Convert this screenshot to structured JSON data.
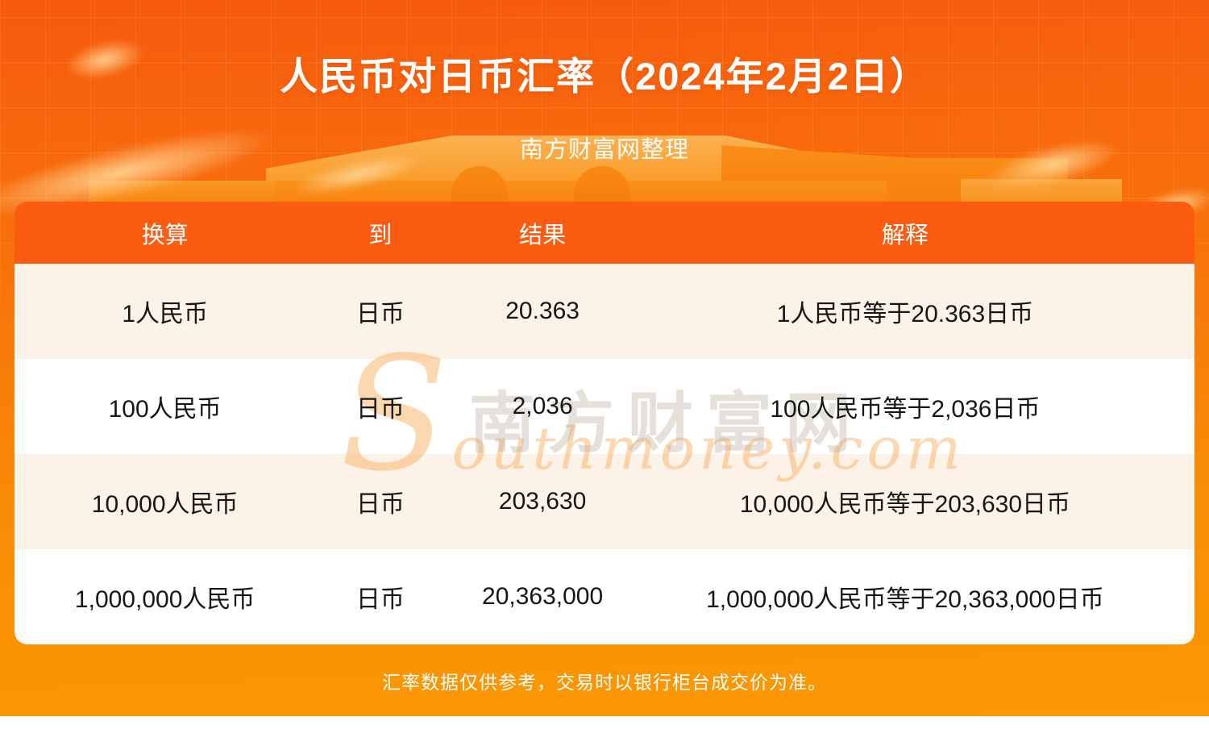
{
  "banner": {
    "title": "人民币对日币汇率（2024年2月2日）",
    "subtitle": "南方财富网整理"
  },
  "table": {
    "headers": [
      "换算",
      "到",
      "结果",
      "解释"
    ],
    "rows": [
      [
        "1人民币",
        "日币",
        "20.363",
        "1人民币等于20.363日币"
      ],
      [
        "100人民币",
        "日币",
        "2,036",
        "100人民币等于2,036日币"
      ],
      [
        "10,000人民币",
        "日币",
        "203,630",
        "10,000人民币等于203,630日币"
      ],
      [
        "1,000,000人民币",
        "日币",
        "20,363,000",
        "1,000,000人民币等于20,363,000日币"
      ]
    ]
  },
  "watermark": {
    "cn": "南方财富网",
    "en": "Southmoney.com"
  },
  "footer": {
    "disclaimer": "汇率数据仅供参考，交易时以银行柜台成交价为准。"
  },
  "colors": {
    "header_bg": "#FB5C12",
    "row_stripe": "#FCF2E8",
    "row_plain": "#FFFFFF",
    "banner_top": "#F75A0E",
    "banner_bottom": "#FB9803",
    "text_dark": "#161616",
    "text_light": "#FFFFFF"
  },
  "chart_data": {
    "type": "table",
    "title": "人民币对日币汇率（2024年2月2日）",
    "subtitle": "南方财富网整理",
    "columns": [
      "换算",
      "到",
      "结果",
      "解释"
    ],
    "rows": [
      {
        "convert": "1人民币",
        "to": "日币",
        "result": 20.363,
        "explanation": "1人民币等于20.363日币"
      },
      {
        "convert": "100人民币",
        "to": "日币",
        "result": 2036,
        "explanation": "100人民币等于2,036日币"
      },
      {
        "convert": "10,000人民币",
        "to": "日币",
        "result": 203630,
        "explanation": "10,000人民币等于203,630日币"
      },
      {
        "convert": "1,000,000人民币",
        "to": "日币",
        "result": 20363000,
        "explanation": "1,000,000人民币等于20,363,000日币"
      }
    ],
    "base_currency": "人民币",
    "quote_currency": "日币",
    "rate": 20.363,
    "date": "2024年2月2日"
  }
}
